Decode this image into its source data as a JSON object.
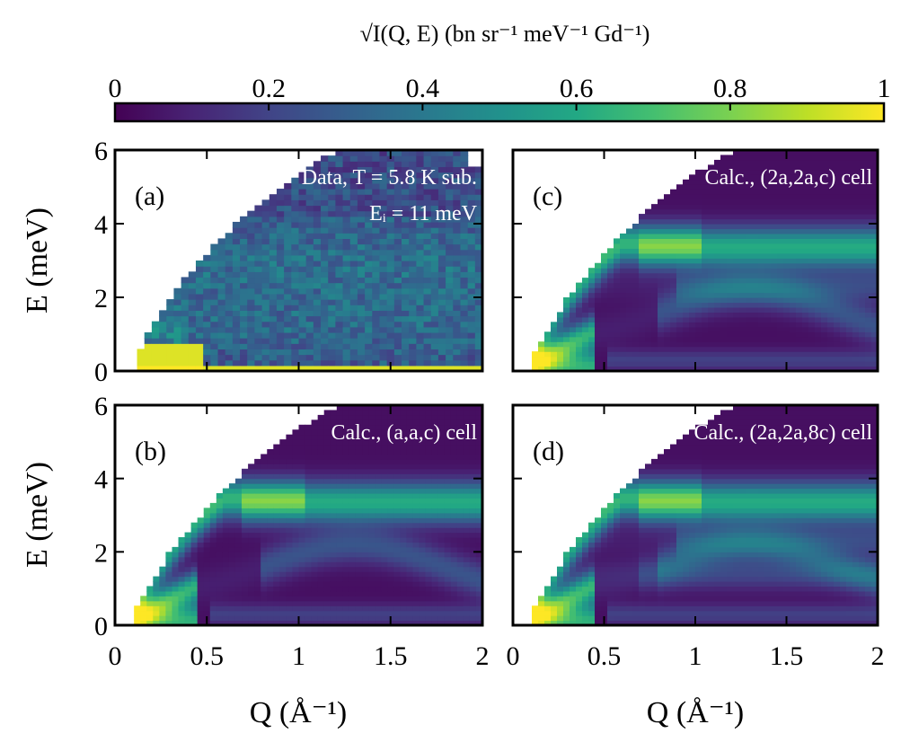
{
  "colorbar": {
    "title": "√I(Q, E) (bn sr⁻¹ meV⁻¹ Gd⁻¹)",
    "tick_labels": [
      "0",
      "0.2",
      "0.4",
      "0.6",
      "0.8",
      "1"
    ],
    "range": [
      0,
      1
    ],
    "colormap": "viridis"
  },
  "axes": {
    "xlabel": "Q (Å⁻¹)",
    "ylabel": "E (meV)",
    "xlim": [
      0,
      2
    ],
    "ylim": [
      0,
      6
    ],
    "x_tick_labels_left": [
      "0",
      "0.5",
      "1",
      "1.5",
      "2"
    ],
    "x_tick_labels_right": [
      "0",
      "0.5",
      "1",
      "1.5",
      "2"
    ],
    "y_tick_labels": [
      "0",
      "2",
      "4",
      "6"
    ]
  },
  "panels": [
    {
      "id": "a",
      "label": "(a)",
      "note_lines": [
        "Data, T = 5.8 K sub.",
        "Eᵢ = 11 meV"
      ]
    },
    {
      "id": "b",
      "label": "(b)",
      "note_lines": [
        "Calc., (a,a,c) cell"
      ]
    },
    {
      "id": "c",
      "label": "(c)",
      "note_lines": [
        "Calc., (2a,2a,c) cell"
      ]
    },
    {
      "id": "d",
      "label": "(d)",
      "note_lines": [
        "Calc., (2a,2a,8c) cell"
      ]
    }
  ],
  "chart_data": {
    "type": "heatmap",
    "title": "",
    "xlabel": "Q (Å⁻¹)",
    "ylabel": "E (meV)",
    "xlim": [
      0,
      2
    ],
    "ylim": [
      0,
      6
    ],
    "zlim": [
      0,
      1
    ],
    "colormap": "viridis",
    "kinematic_limit_E_meV_vs_Q": [
      [
        0.1,
        0.3
      ],
      [
        0.3,
        2.0
      ],
      [
        0.5,
        3.2
      ],
      [
        0.7,
        4.2
      ],
      [
        0.9,
        5.0
      ],
      [
        1.1,
        5.7
      ],
      [
        1.25,
        6.0
      ]
    ],
    "panels": [
      {
        "id": "a",
        "description": "Measured data, T = 5.8 K subtracted, Ei = 11 meV",
        "features": {
          "elastic_line_E": 0.1,
          "elastic_intensity": 1.0,
          "band_E_range": [
            1.5,
            3.8
          ],
          "band_intensity": 0.35
        }
      },
      {
        "id": "b",
        "description": "Calc., (a,a,c) cell",
        "features": {
          "dispersion_peak_Q": 0.9,
          "dispersion_peak_E": 3.5,
          "low_Q_intensity": 1.0,
          "band_intensity": 0.4
        }
      },
      {
        "id": "c",
        "description": "Calc., (2a,2a,c) cell",
        "features": {
          "dispersion_peak_Q": 0.9,
          "dispersion_peak_E": 3.6,
          "low_Q_intensity": 1.0,
          "band_intensity": 0.4
        }
      },
      {
        "id": "d",
        "description": "Calc., (2a,2a,8c) cell",
        "features": {
          "dispersion_peak_Q": 0.9,
          "dispersion_peak_E": 3.6,
          "low_Q_intensity": 1.0,
          "band_intensity": 0.4
        }
      }
    ]
  }
}
